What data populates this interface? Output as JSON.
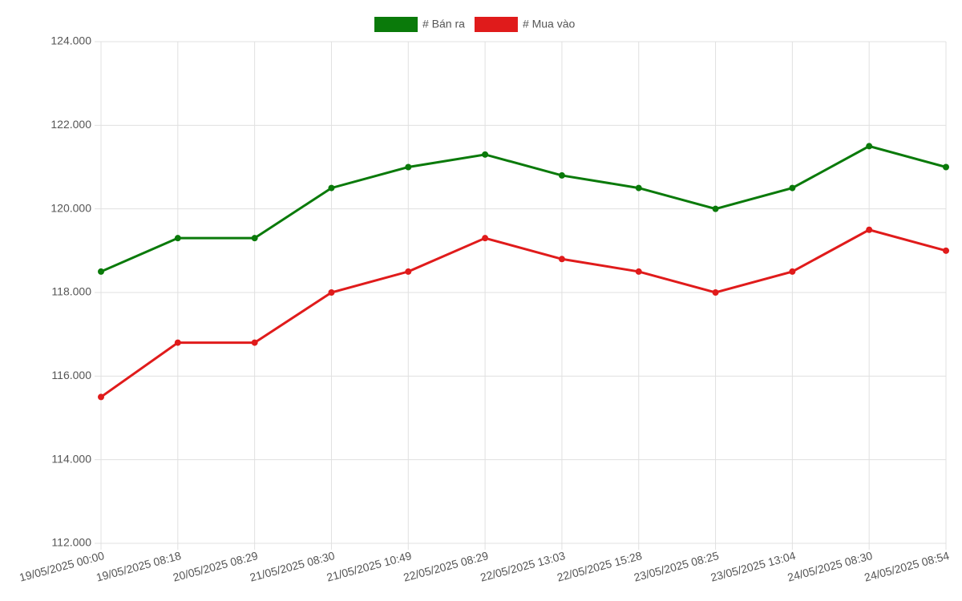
{
  "chart_data": {
    "type": "line",
    "categories": [
      "19/05/2025 00:00",
      "19/05/2025 08:18",
      "20/05/2025 08:29",
      "21/05/2025 08:30",
      "21/05/2025 10:49",
      "22/05/2025 08:29",
      "22/05/2025 13:03",
      "22/05/2025 15:28",
      "23/05/2025 08:25",
      "23/05/2025 13:04",
      "24/05/2025 08:30",
      "24/05/2025 08:54"
    ],
    "series": [
      {
        "name": "# Bán ra",
        "color": "#0a7a0a",
        "values": [
          118500,
          119300,
          119300,
          120500,
          121000,
          121300,
          120800,
          120500,
          120000,
          120500,
          121500,
          121000
        ]
      },
      {
        "name": "# Mua vào",
        "color": "#e01b1b",
        "values": [
          115500,
          116800,
          116800,
          118000,
          118500,
          119300,
          118800,
          118500,
          118000,
          118500,
          119500,
          119000
        ]
      }
    ],
    "ylim": [
      112000,
      124000
    ],
    "yticks": [
      {
        "value": 112000,
        "label": "112.000"
      },
      {
        "value": 114000,
        "label": "114.000"
      },
      {
        "value": 116000,
        "label": "116.000"
      },
      {
        "value": 118000,
        "label": "118.000"
      },
      {
        "value": 120000,
        "label": "120.000"
      },
      {
        "value": 122000,
        "label": "122.000"
      },
      {
        "value": 124000,
        "label": "124.000"
      }
    ],
    "grid": true
  }
}
